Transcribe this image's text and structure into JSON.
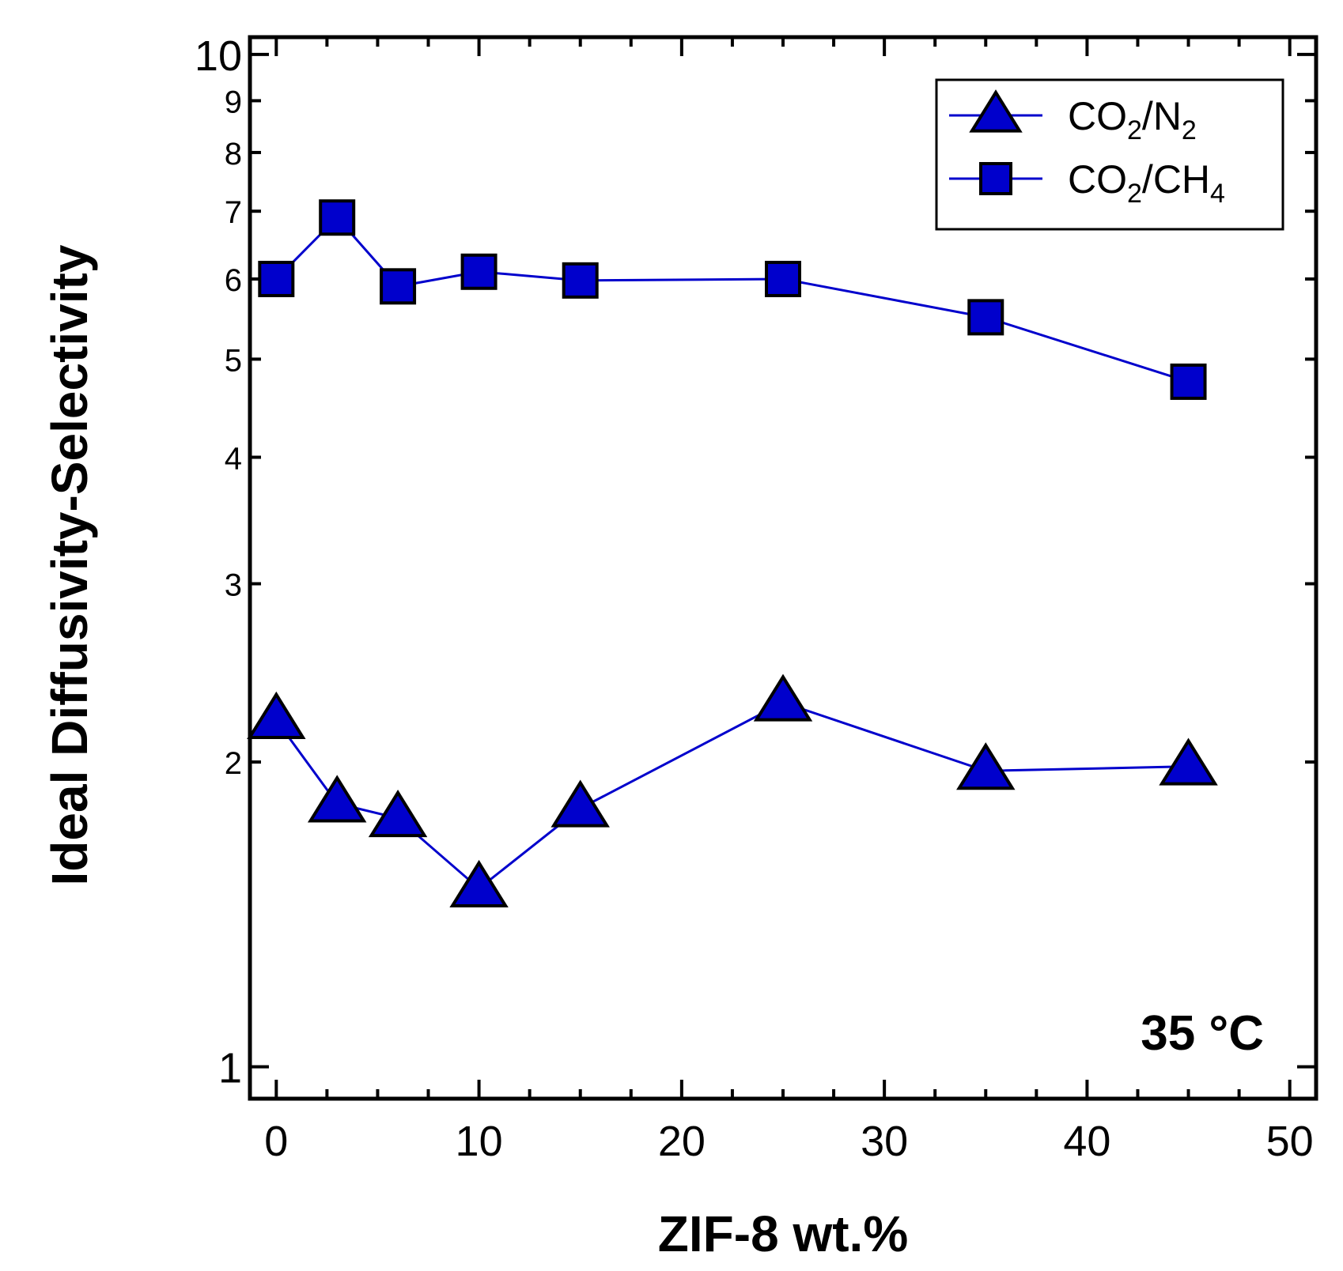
{
  "chart_data": {
    "type": "line",
    "xlabel": "ZIF-8 wt.%",
    "ylabel": "Ideal Diffusivity-Selectivity",
    "xlim": [
      -1.3,
      51.3
    ],
    "ylim": [
      0.93,
      10.4
    ],
    "yscale": "log",
    "xticks": [
      0,
      10,
      20,
      30,
      40,
      50
    ],
    "xtick_labels": [
      "0",
      "10",
      "20",
      "30",
      "40",
      "50"
    ],
    "yticks": [
      1,
      2,
      3,
      4,
      5,
      6,
      7,
      8,
      9,
      10
    ],
    "ytick_labels": [
      "1",
      "2",
      "3",
      "4",
      "5",
      "6",
      "7",
      "8",
      "9",
      "10"
    ],
    "annotation": "35 °C",
    "legend_position": "top-right",
    "series": [
      {
        "name": "CO2/N2",
        "legend": {
          "pre": "CO",
          "sub1": "2",
          "mid": "/N",
          "sub2": "2"
        },
        "marker": "triangle",
        "x": [
          0,
          3,
          6,
          10,
          15,
          25,
          35,
          45
        ],
        "y": [
          2.2,
          1.82,
          1.76,
          1.5,
          1.8,
          2.29,
          1.96,
          1.98
        ]
      },
      {
        "name": "CO2/CH4",
        "legend": {
          "pre": "CO",
          "sub1": "2",
          "mid": "/CH",
          "sub2": "4"
        },
        "marker": "square",
        "x": [
          0,
          3,
          6,
          10,
          15,
          25,
          35,
          45
        ],
        "y": [
          6.0,
          6.9,
          5.9,
          6.1,
          5.98,
          6.0,
          5.5,
          4.75
        ]
      }
    ],
    "colors": {
      "marker_fill": "#0000cc",
      "line": "#0000cc",
      "marker_edge": "#000000",
      "frame": "#000000"
    }
  }
}
